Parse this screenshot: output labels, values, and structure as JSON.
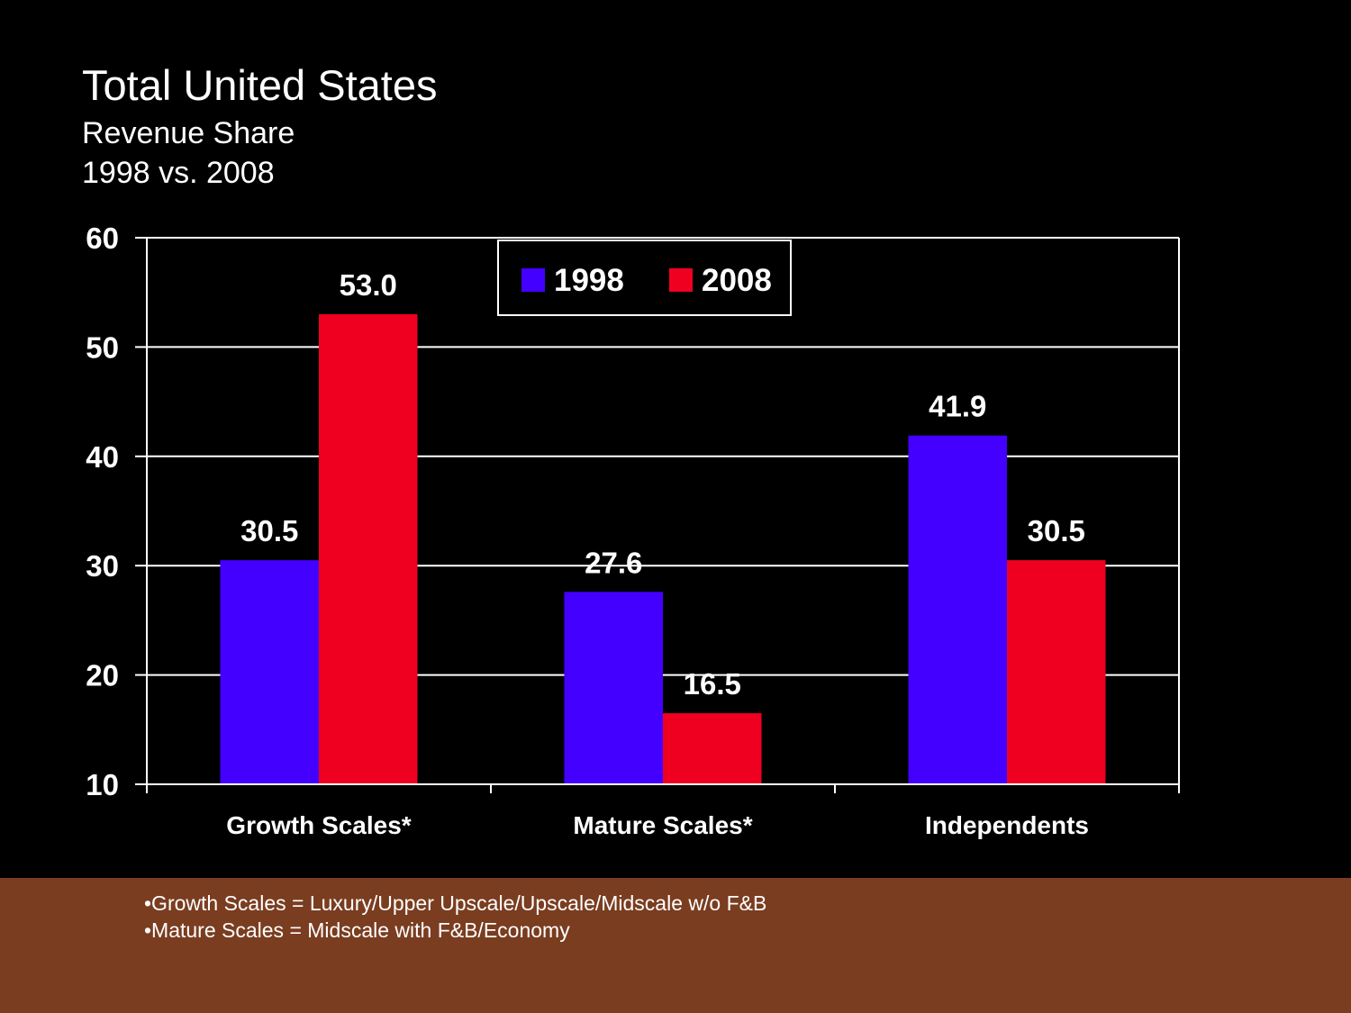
{
  "slide": {
    "title": "Total United States",
    "subtitle_lines": [
      "Revenue Share",
      "1998 vs. 2008"
    ]
  },
  "footnotes": [
    "•Growth Scales = Luxury/Upper Upscale/Upscale/Midscale w/o F&B",
    "•Mature Scales = Midscale with F&B/Economy"
  ],
  "colors": {
    "background": "#000000",
    "footer": "#7a3d20",
    "series_1998": "#4400ff",
    "series_2008": "#f00020",
    "axis": "#ffffff"
  },
  "chart_data": {
    "type": "bar",
    "title": "Total United States",
    "subtitle": "Revenue Share 1998 vs. 2008",
    "xlabel": "",
    "ylabel": "",
    "categories": [
      "Growth Scales*",
      "Mature Scales*",
      "Independents"
    ],
    "series": [
      {
        "name": "1998",
        "color": "#4400ff",
        "values": [
          30.5,
          27.6,
          41.9
        ],
        "labels": [
          "30.5",
          "27.6",
          "41.9"
        ]
      },
      {
        "name": "2008",
        "color": "#f00020",
        "values": [
          53.0,
          16.5,
          30.5
        ],
        "labels": [
          "53.0",
          "16.5",
          "30.5"
        ]
      }
    ],
    "ylim": [
      10,
      60
    ],
    "yticks": [
      10,
      20,
      30,
      40,
      50,
      60
    ],
    "ytick_labels": [
      "10",
      "20",
      "30",
      "40",
      "50",
      "60"
    ],
    "grid": true,
    "legend": {
      "placement": "top-center",
      "entries": [
        "1998",
        "2008"
      ]
    }
  }
}
